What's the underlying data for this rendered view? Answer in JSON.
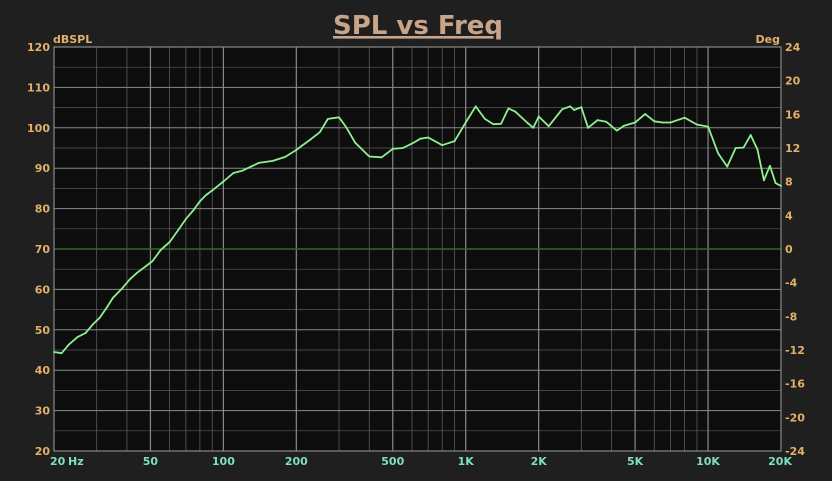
{
  "chart_data": {
    "type": "line",
    "title": "SPL vs Freq",
    "ylabel_left": "dBSPL",
    "ylabel_right": "Deg",
    "x_unit": "Hz",
    "x_scale": "log",
    "xlim": [
      20,
      20000
    ],
    "ylim_left": [
      20,
      120
    ],
    "ylim_right": [
      -24,
      24
    ],
    "x_tick_labels": [
      {
        "value": 20,
        "label": "20"
      },
      {
        "value": 50,
        "label": "50"
      },
      {
        "value": 100,
        "label": "100"
      },
      {
        "value": 200,
        "label": "200"
      },
      {
        "value": 500,
        "label": "500"
      },
      {
        "value": 1000,
        "label": "1K"
      },
      {
        "value": 2000,
        "label": "2K"
      },
      {
        "value": 5000,
        "label": "5K"
      },
      {
        "value": 10000,
        "label": "10K"
      },
      {
        "value": 20000,
        "label": "20K"
      }
    ],
    "y_ticks_left": [
      20,
      30,
      40,
      50,
      60,
      70,
      80,
      90,
      100,
      110,
      120
    ],
    "y_ticks_right": [
      -24,
      -20,
      -16,
      -12,
      -8,
      -4,
      0,
      4,
      8,
      12,
      16,
      20,
      24
    ],
    "grid": true,
    "colors": {
      "background": "#1f1f1f",
      "plot_background": "#0d0d0d",
      "grid": "#5a5a5a",
      "grid_major": "#8a8a8a",
      "reference_line": "#2e6b2e",
      "series": "#8ff08f",
      "title": "#c8a48a",
      "axis_label": "#e3b06a",
      "x_tick_label": "#7ee0c0"
    },
    "reference_line_y": 70,
    "series": [
      {
        "x": [
          20,
          21.5,
          23,
          25,
          27,
          29,
          31,
          33,
          35,
          38,
          41,
          44,
          48,
          51,
          55,
          60,
          65,
          70,
          75,
          80,
          85,
          90,
          100,
          110,
          120,
          130,
          140,
          160,
          180,
          200,
          210,
          230,
          250,
          270,
          300,
          320,
          350,
          400,
          450,
          500,
          550,
          600,
          650,
          700,
          800,
          900,
          1000,
          1100,
          1200,
          1300,
          1400,
          1500,
          1600,
          1800,
          1900,
          2000,
          2200,
          2500,
          2700,
          2800,
          3000,
          3200,
          3500,
          3800,
          4200,
          4500,
          5000,
          5500,
          6000,
          6500,
          7000,
          8000,
          9000,
          10000,
          11000,
          12000,
          13000,
          14000,
          15000,
          16000,
          17000,
          18000,
          19000,
          20000
        ],
        "y": [
          44.5,
          44.2,
          46.3,
          48.2,
          49.2,
          51.4,
          53.1,
          55.5,
          57.9,
          60.1,
          62.4,
          64.1,
          65.8,
          67.0,
          69.7,
          71.7,
          74.6,
          77.4,
          79.5,
          81.8,
          83.4,
          84.5,
          86.7,
          88.8,
          89.4,
          90.4,
          91.3,
          91.8,
          92.8,
          94.5,
          95.5,
          97.2,
          98.9,
          102.2,
          102.6,
          100.3,
          96.3,
          92.9,
          92.7,
          94.8,
          95.0,
          96.1,
          97.3,
          97.6,
          95.7,
          96.7,
          101.3,
          105.3,
          102.2,
          100.9,
          101.0,
          104.8,
          104.0,
          101.2,
          100.0,
          102.8,
          100.4,
          104.6,
          105.3,
          104.4,
          105.1,
          100.0,
          101.9,
          101.5,
          99.3,
          100.5,
          101.3,
          103.4,
          101.6,
          101.3,
          101.3,
          102.5,
          100.8,
          100.3,
          93.7,
          90.4,
          95.0,
          95.1,
          98.2,
          94.6,
          87.0,
          90.6,
          86.3,
          85.6
        ]
      }
    ]
  }
}
